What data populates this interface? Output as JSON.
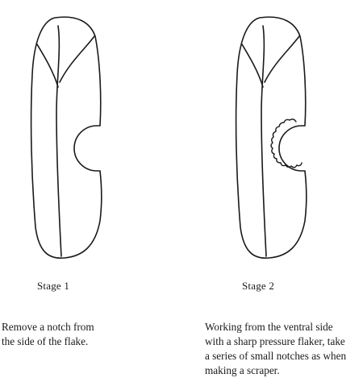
{
  "stage1": {
    "label": "Stage 1",
    "caption_lines": [
      "Remove a notch from",
      "the side of the flake."
    ]
  },
  "stage2": {
    "label": "Stage 2",
    "caption_lines": [
      "Working from the ventral side",
      "with a sharp pressure flaker, take",
      "a series of small notches as when",
      "making a scraper."
    ]
  },
  "colors": {
    "ink": "#1a1a1a",
    "background": "#ffffff"
  }
}
